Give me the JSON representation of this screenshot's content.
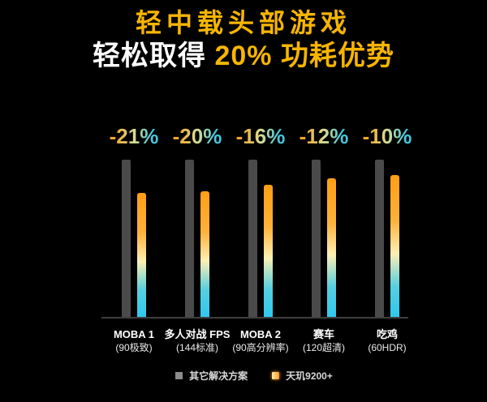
{
  "title": {
    "line1": "轻中载头部游戏",
    "line2_prefix": "轻松取得 ",
    "line2_highlight": "20% 功耗优势"
  },
  "chart_data": {
    "type": "bar",
    "categories": [
      "MOBA 1",
      "多人对战 FPS",
      "MOBA 2",
      "赛车",
      "吃鸡"
    ],
    "category_notes": [
      "(90极致)",
      "(144标准)",
      "(90高分辨率)",
      "(120超清)",
      "(60HDR)"
    ],
    "delta_labels": [
      "-21%",
      "-20%",
      "-16%",
      "-12%",
      "-10%"
    ],
    "series": [
      {
        "name": "其它解决方案",
        "values": [
          100,
          100,
          100,
          100,
          100
        ],
        "color": "#4a4a4a"
      },
      {
        "name": "天玑9200+",
        "values": [
          79,
          80,
          84,
          88,
          90
        ],
        "color_gradient": [
          "#ff9e15",
          "#fdf0b4",
          "#2ec8ee"
        ]
      }
    ],
    "ylim": [
      0,
      100
    ],
    "grid": false,
    "legend_position": "bottom",
    "title": "轻中载头部游戏 轻松取得 20% 功耗优势"
  },
  "legend": {
    "items": [
      {
        "label": "其它解决方案",
        "swatch": "gray-square"
      },
      {
        "label": "天玑9200+",
        "swatch": "gradient-square"
      }
    ]
  },
  "colors": {
    "background": "#000000",
    "accent_yellow": "#f7b500",
    "text_white": "#ffffff",
    "bar_gray": "#4a4a4a",
    "bar_gradient_top": "#ff9e15",
    "bar_gradient_mid": "#fdf0b4",
    "bar_gradient_bottom": "#2ec8ee",
    "pct_gradient_left": "#f0a62e",
    "pct_gradient_right": "#45c6de",
    "baseline": "#3f3f3f",
    "legend_gray_swatch": "#8c8c8c"
  }
}
